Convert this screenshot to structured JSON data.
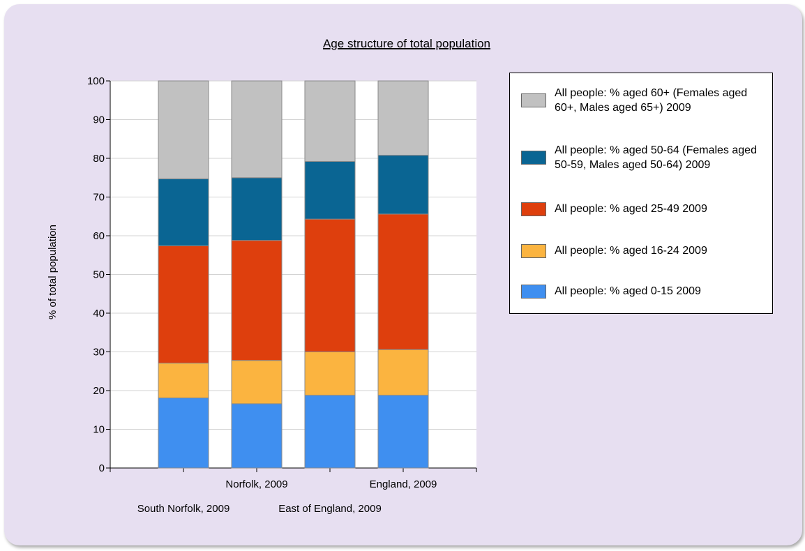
{
  "chart_data": {
    "type": "bar",
    "stacked": true,
    "title": "Age structure of total population",
    "xlabel": "",
    "ylabel": "% of total population",
    "ylim": [
      0,
      100
    ],
    "yticks": [
      0,
      10,
      20,
      30,
      40,
      50,
      60,
      70,
      80,
      90,
      100
    ],
    "categories": [
      "South Norfolk, 2009",
      "Norfolk, 2009",
      "East of England, 2009",
      "England, 2009"
    ],
    "series": [
      {
        "name": "All people: % aged 0-15 2009",
        "color": "#3f8ff0",
        "values": [
          18.1,
          16.6,
          18.8,
          18.8
        ]
      },
      {
        "name": "All people: % aged 16-24 2009",
        "color": "#fbb440",
        "values": [
          9.0,
          11.2,
          11.2,
          11.8
        ]
      },
      {
        "name": "All people: % aged 25-49 2009",
        "color": "#de3f0d",
        "values": [
          30.3,
          31.0,
          34.3,
          35.0
        ]
      },
      {
        "name": "All people: % aged 50-64 (Females aged 50-59, Males aged 50-64) 2009",
        "color": "#0a6593",
        "values": [
          17.3,
          16.2,
          14.9,
          15.2
        ]
      },
      {
        "name": "All people: % aged 60+ (Females aged 60+, Males aged 65+) 2009",
        "color": "#c1c1c1",
        "values": [
          25.3,
          25.0,
          20.8,
          19.2
        ]
      }
    ],
    "legend_position": "right",
    "grid": true
  },
  "legend": {
    "items": [
      {
        "label": "All people: % aged 60+ (Females aged 60+, Males aged 65+) 2009",
        "color": "#c1c1c1"
      },
      {
        "label": "All people: % aged 50-64 (Females aged 50-59, Males aged 50-64) 2009",
        "color": "#0a6593"
      },
      {
        "label": "All people: % aged 25-49 2009",
        "color": "#de3f0d"
      },
      {
        "label": "All people: % aged 16-24 2009",
        "color": "#fbb440"
      },
      {
        "label": "All people: % aged 0-15 2009",
        "color": "#3f8ff0"
      }
    ]
  },
  "colors": {
    "panel_background": "#e7dff1",
    "plot_background": "#ffffff",
    "gridline": "#d3d3d3"
  }
}
